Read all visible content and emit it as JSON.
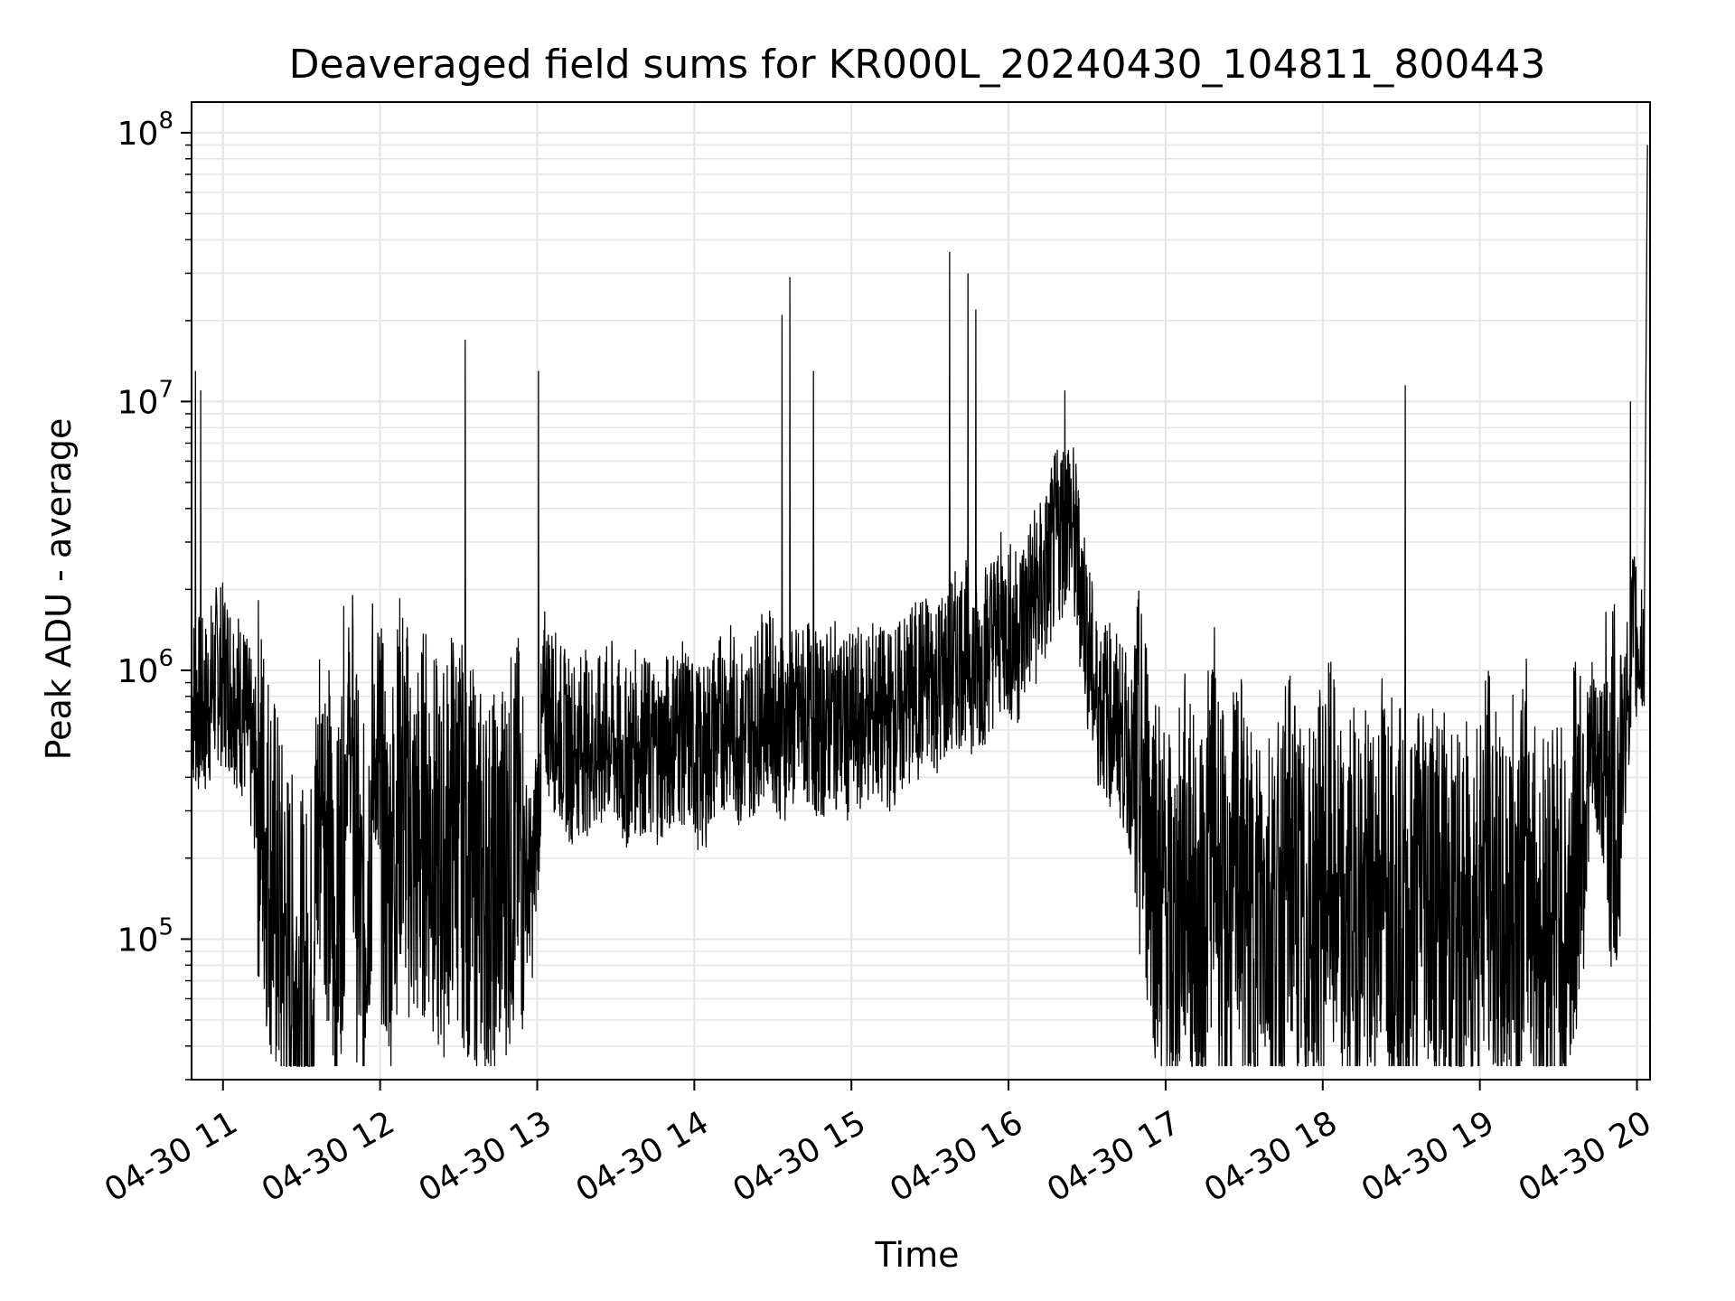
{
  "chart_data": {
    "type": "line",
    "title": "Deaveraged field sums for KR000L_20240430_104811_800443",
    "xlabel": "Time",
    "ylabel": "Peak ADU - average",
    "yscale": "log",
    "ylim": [
      30000,
      130000000
    ],
    "xlim": [
      "2024-04-30 10:48",
      "2024-04-30 20:05"
    ],
    "x_ticks": [
      "04-30 11",
      "04-30 12",
      "04-30 13",
      "04-30 14",
      "04-30 15",
      "04-30 16",
      "04-30 17",
      "04-30 18",
      "04-30 19",
      "04-30 20"
    ],
    "y_ticks": [
      {
        "base": "10",
        "exp": "5",
        "value": 100000
      },
      {
        "base": "10",
        "exp": "6",
        "value": 1000000
      },
      {
        "base": "10",
        "exp": "7",
        "value": 10000000
      },
      {
        "base": "10",
        "exp": "8",
        "value": 100000000
      }
    ],
    "grid": true,
    "line_color": "#000000",
    "grid_color": "#e6e6e6",
    "series": [
      {
        "x": [
          "2024-04-30 10:48",
          "2024-04-30 10:53",
          "2024-04-30 10:58",
          "2024-04-30 11:03",
          "2024-04-30 11:08",
          "2024-04-30 11:13",
          "2024-04-30 11:18",
          "2024-04-30 11:23",
          "2024-04-30 11:28",
          "2024-04-30 11:33",
          "2024-04-30 11:38",
          "2024-04-30 11:43",
          "2024-04-30 11:48",
          "2024-04-30 11:53",
          "2024-04-30 11:58",
          "2024-04-30 12:03",
          "2024-04-30 12:08",
          "2024-04-30 12:13",
          "2024-04-30 12:18",
          "2024-04-30 12:23",
          "2024-04-30 12:28",
          "2024-04-30 12:33",
          "2024-04-30 12:38",
          "2024-04-30 12:43",
          "2024-04-30 12:48",
          "2024-04-30 12:53",
          "2024-04-30 12:58",
          "2024-04-30 13:03",
          "2024-04-30 13:08",
          "2024-04-30 13:13",
          "2024-04-30 13:18",
          "2024-04-30 13:23",
          "2024-04-30 13:28",
          "2024-04-30 13:33",
          "2024-04-30 13:38",
          "2024-04-30 13:43",
          "2024-04-30 13:48",
          "2024-04-30 13:53",
          "2024-04-30 13:58",
          "2024-04-30 14:03",
          "2024-04-30 14:08",
          "2024-04-30 14:13",
          "2024-04-30 14:18",
          "2024-04-30 14:23",
          "2024-04-30 14:28",
          "2024-04-30 14:33",
          "2024-04-30 14:38",
          "2024-04-30 14:43",
          "2024-04-30 14:48",
          "2024-04-30 14:53",
          "2024-04-30 14:58",
          "2024-04-30 15:03",
          "2024-04-30 15:08",
          "2024-04-30 15:13",
          "2024-04-30 15:18",
          "2024-04-30 15:23",
          "2024-04-30 15:28",
          "2024-04-30 15:33",
          "2024-04-30 15:38",
          "2024-04-30 15:43",
          "2024-04-30 15:48",
          "2024-04-30 15:53",
          "2024-04-30 15:58",
          "2024-04-30 16:03",
          "2024-04-30 16:08",
          "2024-04-30 16:13",
          "2024-04-30 16:18",
          "2024-04-30 16:23",
          "2024-04-30 16:28",
          "2024-04-30 16:33",
          "2024-04-30 16:38",
          "2024-04-30 16:43",
          "2024-04-30 16:48",
          "2024-04-30 16:53",
          "2024-04-30 16:58",
          "2024-04-30 17:03",
          "2024-04-30 17:08",
          "2024-04-30 17:13",
          "2024-04-30 17:18",
          "2024-04-30 17:23",
          "2024-04-30 17:28",
          "2024-04-30 17:33",
          "2024-04-30 17:38",
          "2024-04-30 17:43",
          "2024-04-30 17:48",
          "2024-04-30 17:53",
          "2024-04-30 17:58",
          "2024-04-30 18:03",
          "2024-04-30 18:08",
          "2024-04-30 18:13",
          "2024-04-30 18:18",
          "2024-04-30 18:23",
          "2024-04-30 18:28",
          "2024-04-30 18:33",
          "2024-04-30 18:38",
          "2024-04-30 18:43",
          "2024-04-30 18:48",
          "2024-04-30 18:53",
          "2024-04-30 18:58",
          "2024-04-30 19:03",
          "2024-04-30 19:08",
          "2024-04-30 19:13",
          "2024-04-30 19:18",
          "2024-04-30 19:23",
          "2024-04-30 19:28",
          "2024-04-30 19:33",
          "2024-04-30 19:38",
          "2024-04-30 19:43",
          "2024-04-30 19:48",
          "2024-04-30 19:53",
          "2024-04-30 19:58",
          "2024-04-30 20:03"
        ],
        "y": [
          800000,
          700000,
          1000000,
          900000,
          700000,
          400000,
          200000,
          100000,
          70000,
          60000,
          500000,
          80000,
          700000,
          90000,
          500000,
          150000,
          400000,
          200000,
          300000,
          170000,
          300000,
          200000,
          170000,
          150000,
          200000,
          250000,
          150000,
          800000,
          600000,
          500000,
          550000,
          500000,
          600000,
          450000,
          550000,
          500000,
          500000,
          600000,
          550000,
          450000,
          600000,
          700000,
          550000,
          650000,
          800000,
          600000,
          650000,
          700000,
          600000,
          700000,
          600000,
          650000,
          700000,
          650000,
          700000,
          800000,
          900000,
          900000,
          1000000,
          1200000,
          1000000,
          1300000,
          1500000,
          1300000,
          1800000,
          2000000,
          3000000,
          4000000,
          2000000,
          800000,
          700000,
          600000,
          400000,
          300000,
          150000,
          100000,
          200000,
          90000,
          300000,
          100000,
          200000,
          100000,
          150000,
          120000,
          200000,
          100000,
          150000,
          200000,
          100000,
          150000,
          120000,
          200000,
          150000,
          100000,
          200000,
          150000,
          120000,
          100000,
          150000,
          200000,
          100000,
          150000,
          200000,
          100000,
          150000,
          100000,
          300000,
          500000,
          400000,
          300000,
          1300000,
          1200000
        ],
        "spikes": [
          {
            "x": "2024-04-30 10:50",
            "y": 13000000
          },
          {
            "x": "2024-04-30 10:52",
            "y": 11000000
          },
          {
            "x": "2024-04-30 12:33",
            "y": 17000000
          },
          {
            "x": "2024-04-30 13:01",
            "y": 13000000
          },
          {
            "x": "2024-04-30 14:34",
            "y": 21000000
          },
          {
            "x": "2024-04-30 14:37",
            "y": 29000000
          },
          {
            "x": "2024-04-30 14:46",
            "y": 13000000
          },
          {
            "x": "2024-04-30 15:38",
            "y": 36000000
          },
          {
            "x": "2024-04-30 15:45",
            "y": 30000000
          },
          {
            "x": "2024-04-30 15:48",
            "y": 22000000
          },
          {
            "x": "2024-04-30 16:22",
            "y": 11000000
          },
          {
            "x": "2024-04-30 18:32",
            "y": 11500000
          },
          {
            "x": "2024-04-30 19:58",
            "y": 10000000
          },
          {
            "x": "2024-04-30 20:04",
            "y": 90000000
          }
        ]
      }
    ]
  }
}
